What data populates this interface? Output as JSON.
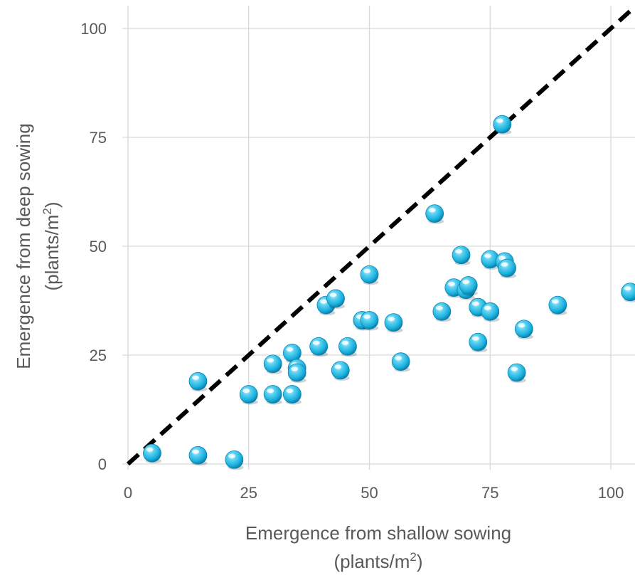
{
  "chart_data": {
    "type": "scatter",
    "title": "",
    "xlabel_line1": "Emergence from shallow sowing",
    "xlabel_line2_prefix": "(plants/m",
    "xlabel_line2_sup": "2",
    "xlabel_line2_suffix": ")",
    "ylabel_line1": "Emergence from deep sowing",
    "ylabel_line2_prefix": "(plants/m",
    "ylabel_line2_sup": "2",
    "ylabel_line2_suffix": ")",
    "xlim": [
      0,
      105
    ],
    "ylim": [
      0,
      100
    ],
    "xticks": [
      0,
      25,
      50,
      75,
      100
    ],
    "yticks": [
      0,
      25,
      50,
      75,
      100
    ],
    "grid": true,
    "reference_line": {
      "type": "y = x",
      "style": "dashed",
      "color": "#000000"
    },
    "marker_color": "#1cb4e0",
    "points": [
      {
        "x": 5,
        "y": 2.5
      },
      {
        "x": 14.5,
        "y": 2
      },
      {
        "x": 22,
        "y": 1
      },
      {
        "x": 14.5,
        "y": 19
      },
      {
        "x": 25,
        "y": 16
      },
      {
        "x": 30,
        "y": 16
      },
      {
        "x": 34,
        "y": 16
      },
      {
        "x": 30,
        "y": 23
      },
      {
        "x": 34,
        "y": 25.5
      },
      {
        "x": 35,
        "y": 22
      },
      {
        "x": 35,
        "y": 21
      },
      {
        "x": 39.5,
        "y": 27
      },
      {
        "x": 41,
        "y": 36.5
      },
      {
        "x": 43,
        "y": 38
      },
      {
        "x": 44,
        "y": 21.5
      },
      {
        "x": 45.5,
        "y": 27
      },
      {
        "x": 48.5,
        "y": 33
      },
      {
        "x": 50,
        "y": 33
      },
      {
        "x": 50,
        "y": 43.5
      },
      {
        "x": 55,
        "y": 32.5
      },
      {
        "x": 56.5,
        "y": 23.5
      },
      {
        "x": 63.5,
        "y": 57.5
      },
      {
        "x": 65,
        "y": 35
      },
      {
        "x": 67.5,
        "y": 40.5
      },
      {
        "x": 69,
        "y": 48
      },
      {
        "x": 70,
        "y": 40
      },
      {
        "x": 70.5,
        "y": 41
      },
      {
        "x": 72.5,
        "y": 36
      },
      {
        "x": 72.5,
        "y": 28
      },
      {
        "x": 75,
        "y": 35
      },
      {
        "x": 75,
        "y": 47
      },
      {
        "x": 77.5,
        "y": 78
      },
      {
        "x": 78,
        "y": 46.5
      },
      {
        "x": 78.5,
        "y": 45
      },
      {
        "x": 80.5,
        "y": 21
      },
      {
        "x": 82,
        "y": 31
      },
      {
        "x": 89,
        "y": 36.5
      },
      {
        "x": 104,
        "y": 39.5
      }
    ]
  }
}
